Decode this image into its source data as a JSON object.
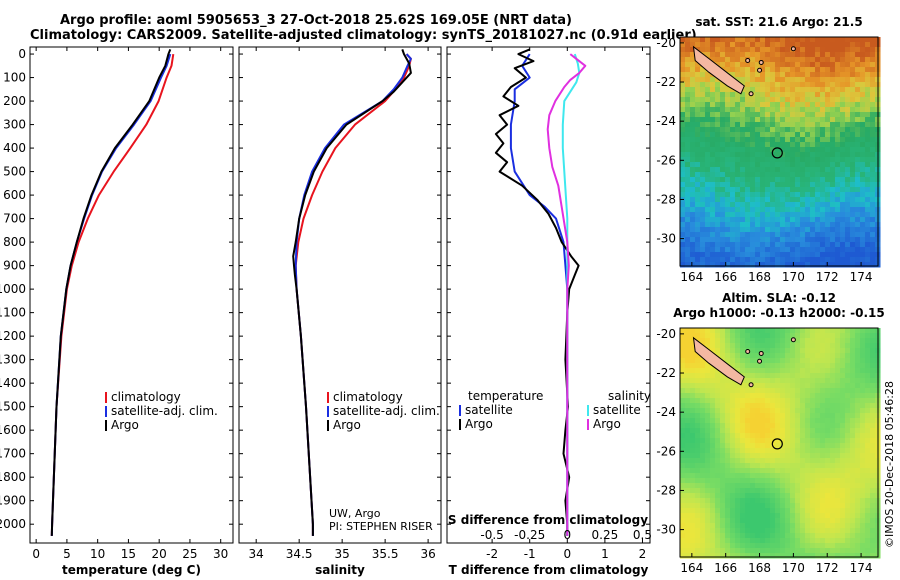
{
  "title_line1": "Argo profile: aoml 5905653_3 27-Oct-2018 25.62S 169.05E (NRT data)",
  "title_line2": "Climatology: CARS2009. Satellite-adjusted climatology: synTS_20181027.nc (0.91d earlier)",
  "watermark": "©IMOS 20-Dec-2018 05:46:28",
  "colors": {
    "climatology": "#e8141e",
    "satellite": "#1a2ee0",
    "argo": "#000000",
    "sal_satellite": "#3fe8ee",
    "sal_argo": "#e030e0"
  },
  "chart_data": [
    {
      "type": "line",
      "name": "temperature",
      "xlabel": "temperature (deg C)",
      "xlim": [
        -1,
        32
      ],
      "ylim": [
        2080,
        -30
      ],
      "xticks": [
        "0",
        "5",
        "10",
        "15",
        "20",
        "25",
        "30"
      ],
      "xtick_values": [
        0,
        5,
        10,
        15,
        20,
        25,
        30
      ],
      "yticks": [
        "0",
        "100",
        "200",
        "300",
        "400",
        "500",
        "600",
        "700",
        "800",
        "900",
        "1000",
        "1100",
        "1200",
        "1300",
        "1400",
        "1500",
        "1600",
        "1700",
        "1800",
        "1900",
        "2000"
      ],
      "ytick_values": [
        0,
        100,
        200,
        300,
        400,
        500,
        600,
        700,
        800,
        900,
        1000,
        1100,
        1200,
        1300,
        1400,
        1500,
        1600,
        1700,
        1800,
        1900,
        2000
      ],
      "legend": [
        "climatology",
        "satellite-adj. clim.",
        "Argo"
      ],
      "series": [
        {
          "name": "climatology",
          "color_key": "climatology",
          "depth": [
            0,
            50,
            100,
            200,
            300,
            400,
            500,
            600,
            700,
            800,
            900,
            1000,
            1200,
            1500,
            2000,
            2050
          ],
          "values": [
            22.3,
            22.0,
            21.2,
            19.9,
            17.9,
            15.3,
            12.6,
            10.2,
            8.4,
            6.9,
            5.8,
            5.0,
            4.1,
            3.3,
            2.6,
            2.55
          ]
        },
        {
          "name": "satellite-adj. clim.",
          "color_key": "satellite",
          "depth": [
            0,
            50,
            100,
            200,
            300,
            400,
            500,
            600,
            700,
            800,
            900,
            1000,
            1200,
            1500,
            2000,
            2050
          ],
          "values": [
            21.8,
            21.2,
            20.3,
            18.6,
            15.9,
            13.0,
            10.7,
            9.1,
            7.8,
            6.6,
            5.6,
            4.9,
            4.0,
            3.3,
            2.6,
            2.55
          ]
        },
        {
          "name": "Argo",
          "color_key": "argo",
          "depth": [
            -20,
            0,
            50,
            100,
            200,
            300,
            400,
            500,
            600,
            700,
            800,
            900,
            1000,
            1200,
            1500,
            2000,
            2050
          ],
          "values": [
            21.8,
            21.5,
            21.0,
            20.0,
            18.4,
            15.7,
            12.8,
            10.6,
            9.0,
            7.7,
            6.6,
            5.6,
            4.9,
            4.0,
            3.3,
            2.6,
            2.55
          ]
        }
      ]
    },
    {
      "type": "line",
      "name": "salinity",
      "xlabel": "salinity",
      "xlim": [
        33.8,
        36.15
      ],
      "ylim": [
        2080,
        -30
      ],
      "xticks": [
        "34",
        "34.5",
        "35",
        "35.5",
        "36"
      ],
      "xtick_values": [
        34,
        34.5,
        35,
        35.5,
        36
      ],
      "legend": [
        "climatology",
        "satellite-adj. clim.",
        "Argo"
      ],
      "annotation": [
        "UW, Argo",
        "PI: STEPHEN RISER"
      ],
      "series": [
        {
          "name": "climatology",
          "color_key": "climatology",
          "depth": [
            0,
            20,
            50,
            100,
            150,
            200,
            300,
            400,
            500,
            600,
            700,
            800,
            900,
            1000,
            1200,
            1500,
            2000,
            2050
          ],
          "values": [
            35.75,
            35.8,
            35.78,
            35.72,
            35.62,
            35.5,
            35.15,
            34.92,
            34.77,
            34.65,
            34.55,
            34.49,
            34.46,
            34.47,
            34.52,
            34.58,
            34.66,
            34.66
          ]
        },
        {
          "name": "satellite-adj. clim.",
          "color_key": "satellite",
          "depth": [
            0,
            20,
            50,
            100,
            150,
            200,
            300,
            400,
            500,
            600,
            700,
            800,
            900,
            1000,
            1200,
            1500,
            2000,
            2050
          ],
          "values": [
            35.75,
            35.8,
            35.76,
            35.7,
            35.6,
            35.47,
            35.02,
            34.8,
            34.65,
            34.56,
            34.5,
            34.47,
            34.46,
            34.47,
            34.52,
            34.58,
            34.66,
            34.66
          ]
        },
        {
          "name": "Argo",
          "color_key": "argo",
          "depth": [
            -20,
            0,
            40,
            80,
            120,
            160,
            200,
            300,
            400,
            500,
            600,
            700,
            800,
            860,
            900,
            940,
            1000,
            1200,
            1500,
            2000,
            2050
          ],
          "values": [
            35.7,
            35.72,
            35.78,
            35.8,
            35.7,
            35.6,
            35.47,
            35.05,
            34.82,
            34.67,
            34.57,
            34.5,
            34.46,
            34.43,
            34.44,
            34.45,
            34.47,
            34.52,
            34.58,
            34.66,
            34.66
          ]
        }
      ]
    },
    {
      "type": "line",
      "name": "difference",
      "xlabel": "T difference from climatology",
      "xlabel_top": "S difference from climatology",
      "xlim": [
        -3.2,
        2.2
      ],
      "ylim": [
        2080,
        -30
      ],
      "xticks": [
        "-2",
        "-1",
        "0",
        "1",
        "2"
      ],
      "xtick_values": [
        -2,
        -1,
        0,
        1,
        2
      ],
      "s_ticks": [
        "-0.5",
        "-0.25",
        "0",
        "0.25",
        "0.5"
      ],
      "s_tick_values": [
        -0.5,
        -0.25,
        0,
        0.25,
        0.5
      ],
      "s_scale": 4,
      "legend_left_title": "temperature",
      "legend_right_title": "salinity",
      "legend_left": [
        "satellite",
        "Argo"
      ],
      "legend_right": [
        "satellite",
        "Argo"
      ],
      "series": [
        {
          "name": "T satellite",
          "color_key": "satellite",
          "unit": "T",
          "depth": [
            0,
            50,
            100,
            150,
            200,
            300,
            400,
            500,
            600,
            650,
            700,
            750,
            800,
            900,
            1000,
            1200,
            1500,
            2000,
            2050
          ],
          "values": [
            -1.0,
            -1.2,
            -1.0,
            -1.4,
            -1.4,
            -1.5,
            -1.5,
            -1.4,
            -1.0,
            -0.6,
            -0.3,
            -0.2,
            -0.1,
            -0.05,
            0,
            0,
            0,
            0,
            0
          ]
        },
        {
          "name": "T Argo",
          "color_key": "argo",
          "unit": "T",
          "depth": [
            -20,
            0,
            30,
            60,
            100,
            140,
            180,
            220,
            260,
            300,
            340,
            380,
            420,
            460,
            500,
            560,
            620,
            680,
            740,
            800,
            860,
            900,
            940,
            1000,
            1100,
            1300,
            1500,
            1600,
            1700,
            1800,
            1900,
            2000,
            2050
          ],
          "values": [
            -1.0,
            -1.3,
            -0.9,
            -1.4,
            -1.1,
            -1.5,
            -1.7,
            -1.3,
            -1.8,
            -1.6,
            -1.9,
            -1.7,
            -1.9,
            -1.6,
            -1.8,
            -1.2,
            -0.8,
            -0.5,
            -0.3,
            -0.15,
            0.1,
            0.3,
            0.2,
            0.05,
            0,
            -0.05,
            0.02,
            -0.05,
            -0.1,
            0.05,
            -0.05,
            0,
            0
          ]
        },
        {
          "name": "S satellite",
          "color_key": "sal_satellite",
          "unit": "S",
          "depth": [
            0,
            40,
            80,
            120,
            160,
            200,
            300,
            400,
            500,
            600,
            700,
            800,
            1000,
            1500,
            2000,
            2050
          ],
          "values": [
            0.05,
            0.07,
            0.08,
            0.06,
            0.02,
            -0.02,
            -0.03,
            -0.03,
            -0.02,
            -0.01,
            0,
            0,
            0,
            0,
            0,
            0
          ]
        },
        {
          "name": "S Argo",
          "color_key": "sal_argo",
          "unit": "S",
          "depth": [
            0,
            20,
            50,
            80,
            110,
            140,
            200,
            260,
            320,
            400,
            480,
            560,
            640,
            720,
            800,
            900,
            1000,
            1500,
            2000,
            2050
          ],
          "values": [
            0.02,
            0.06,
            0.12,
            0.08,
            0.02,
            -0.02,
            -0.08,
            -0.12,
            -0.13,
            -0.12,
            -0.1,
            -0.06,
            -0.04,
            -0.02,
            0,
            0.01,
            0,
            0,
            0,
            0
          ]
        }
      ]
    },
    {
      "type": "heatmap",
      "name": "sst_map",
      "title": "sat. SST: 21.6 Argo: 21.5",
      "xlim": [
        163.3,
        175
      ],
      "ylim": [
        -31.4,
        -19.7
      ],
      "xticks": [
        "164",
        "166",
        "168",
        "170",
        "172",
        "174"
      ],
      "xtick_values": [
        164,
        166,
        168,
        170,
        172,
        174
      ],
      "yticks": [
        "-20",
        "-22",
        "-24",
        "-26",
        "-28",
        "-30"
      ],
      "ytick_values": [
        -20,
        -22,
        -24,
        -26,
        -28,
        -30
      ],
      "argo_position": [
        169.05,
        -25.62
      ],
      "argo_marker": {
        "lon": 169.05,
        "lat": -25.62
      }
    },
    {
      "type": "heatmap",
      "name": "sla_map",
      "title": "Altim. SLA: -0.12",
      "subtitle": "Argo h1000: -0.13 h2000: -0.15",
      "xlim": [
        163.3,
        175
      ],
      "ylim": [
        -31.4,
        -19.7
      ],
      "xticks": [
        "164",
        "166",
        "168",
        "170",
        "172",
        "174"
      ],
      "xtick_values": [
        164,
        166,
        168,
        170,
        172,
        174
      ],
      "yticks": [
        "-20",
        "-22",
        "-24",
        "-26",
        "-28",
        "-30"
      ],
      "ytick_values": [
        -20,
        -22,
        -24,
        -26,
        -28,
        -30
      ],
      "argo_marker": {
        "lon": 169.05,
        "lat": -25.62
      }
    }
  ]
}
